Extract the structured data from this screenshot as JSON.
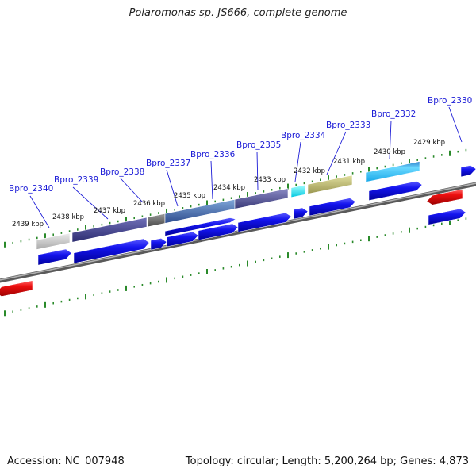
{
  "title": "Polaromonas sp. JS666, complete genome",
  "footer": {
    "accession": "Accession: NC_007948",
    "summary": "Topology: circular; Length: 5,200,264 bp; Genes: 4,873"
  },
  "gene_labels": [
    "Bpro_2340",
    "Bpro_2339",
    "Bpro_2338",
    "Bpro_2337",
    "Bpro_2336",
    "Bpro_2335",
    "Bpro_2334",
    "Bpro_2333",
    "Bpro_2332",
    "Bpro_2330"
  ],
  "kbp_labels": [
    "2439 kbp",
    "2438 kbp",
    "2437 kbp",
    "2436 kbp",
    "2435 kbp",
    "2434 kbp",
    "2433 kbp",
    "2432 kbp",
    "2431 kbp",
    "2430 kbp",
    "2429 kbp"
  ],
  "colors": {
    "gene_label": "#1a1ad6",
    "forward_gene": "#1010e0",
    "reverse_gene": "#e01010",
    "backbone": "#888888",
    "ticks": "#2a8a2a"
  }
}
